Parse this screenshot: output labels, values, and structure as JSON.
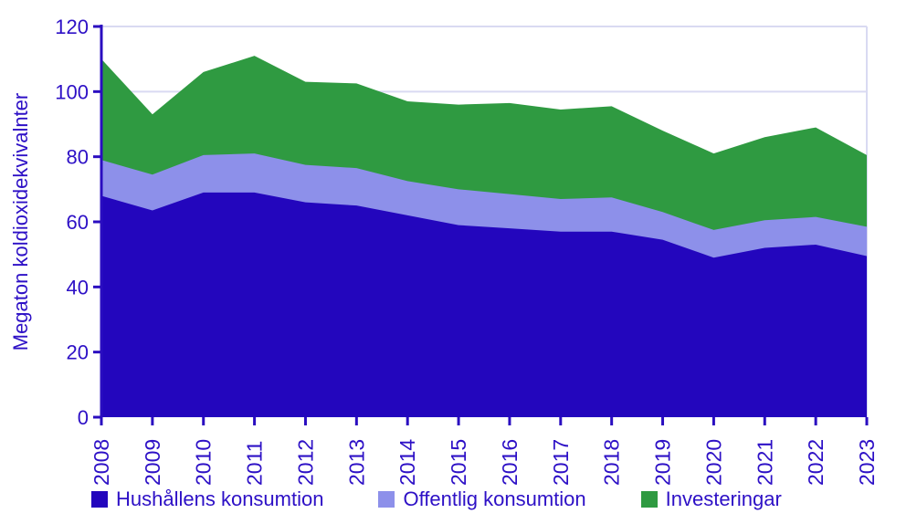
{
  "chart_data": {
    "type": "area",
    "stacked": true,
    "title": "",
    "ylabel": "Megaton koldioxidekvivalnter",
    "xlabel": "",
    "ylim": [
      0,
      120
    ],
    "ytick_step": 20,
    "grid": "horizontal-light",
    "legend_position": "bottom",
    "categories": [
      "2008",
      "2009",
      "2010",
      "2011",
      "2012",
      "2013",
      "2014",
      "2015",
      "2016",
      "2017",
      "2018",
      "2019",
      "2020",
      "2021",
      "2022",
      "2023"
    ],
    "series": [
      {
        "name": "Hushållens konsumtion",
        "color": "#2306bd",
        "values": [
          68,
          63.5,
          69,
          69,
          66,
          65,
          62,
          59,
          58,
          57,
          57,
          54.5,
          49,
          52,
          53,
          49.5
        ]
      },
      {
        "name": "Offentlig konsumtion",
        "color": "#8d90ea",
        "values": [
          11,
          11,
          11.5,
          12,
          11.5,
          11.5,
          10.5,
          11,
          10.5,
          10,
          10.5,
          8.5,
          8.5,
          8.5,
          8.5,
          9
        ]
      },
      {
        "name": "Investeringar",
        "color": "#2f9a41",
        "values": [
          31,
          18.5,
          25.5,
          30,
          25.5,
          26,
          24.5,
          26,
          28,
          27.5,
          28,
          25,
          23.5,
          25.5,
          27.5,
          22
        ]
      }
    ],
    "yticks": [
      0,
      20,
      40,
      60,
      80,
      100,
      120
    ],
    "colors": {
      "axis": "#2a0dc0",
      "text": "#2d10c6",
      "gridline": "#d9daf2",
      "background": "#ffffff"
    }
  }
}
